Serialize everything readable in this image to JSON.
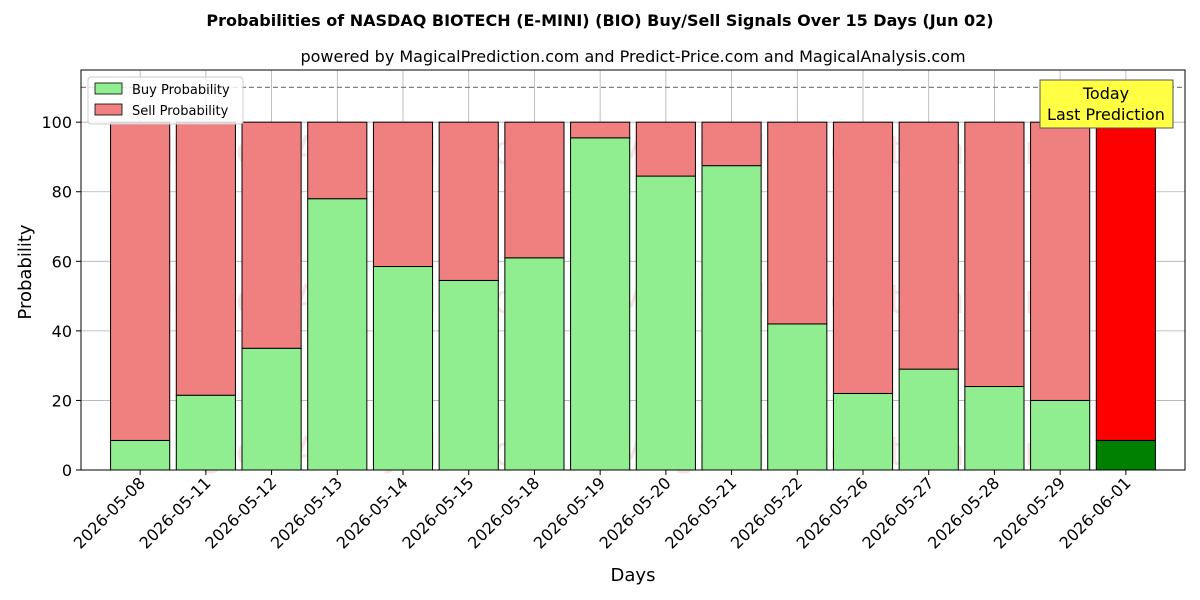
{
  "chart_data": {
    "type": "bar",
    "stacked": true,
    "title": "Probabilities of NASDAQ BIOTECH (E-MINI) (BIO) Buy/Sell Signals Over 15 Days (Jun 02)",
    "subtitle": "powered by MagicalPrediction.com and Predict-Price.com and MagicalAnalysis.com",
    "xlabel": "Days",
    "ylabel": "Probability",
    "ylim": [
      0,
      115
    ],
    "yticks": [
      0,
      20,
      40,
      60,
      80,
      100
    ],
    "reference_line": 110,
    "grid": true,
    "legend_position": "top-left",
    "categories": [
      "2026-05-08",
      "2026-05-11",
      "2026-05-12",
      "2026-05-13",
      "2026-05-14",
      "2026-05-15",
      "2026-05-18",
      "2026-05-19",
      "2026-05-20",
      "2026-05-21",
      "2026-05-22",
      "2026-05-26",
      "2026-05-27",
      "2026-05-28",
      "2026-05-29",
      "2026-06-01"
    ],
    "series": [
      {
        "name": "Buy Probability",
        "color": "#90ee90",
        "values": [
          8.5,
          21.5,
          35,
          78,
          58.5,
          54.5,
          61,
          95.5,
          84.5,
          87.5,
          42,
          22,
          29,
          24,
          20,
          8.5
        ]
      },
      {
        "name": "Sell Probability",
        "color": "#f08080",
        "values": [
          91.5,
          78.5,
          65,
          22,
          41.5,
          45.5,
          39,
          4.5,
          15.5,
          12.5,
          58,
          78,
          71,
          76,
          80,
          91.5
        ]
      }
    ],
    "highlight": {
      "index": 15,
      "buy_color": "#008000",
      "sell_color": "#ff0000"
    },
    "annotation": {
      "line1": "Today",
      "line2": "Last Prediction",
      "bg_color": "#ffff44"
    },
    "watermarks": [
      "MagicalAnalysis.com",
      "MagicalPrediction.com"
    ]
  }
}
